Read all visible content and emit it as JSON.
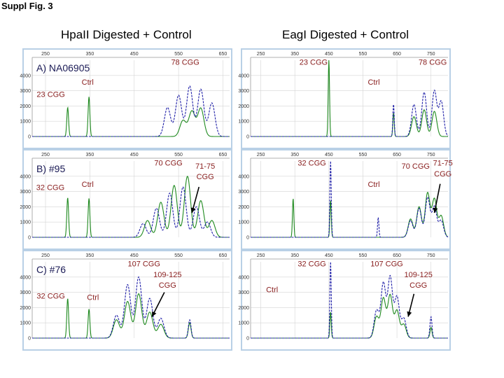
{
  "figure_label": "Suppl Fig. 3",
  "column_titles": [
    "HpaII Digested + Control",
    "EagI Digested + Control"
  ],
  "colors": {
    "digested": "#1f1fa8",
    "control": "#1f8a1f",
    "frame": "#b9d0e6",
    "grid": "#d4d4d4",
    "annotation": "#8a2020"
  },
  "chart_data": [
    {
      "type": "line",
      "column": 0,
      "row": 0,
      "panel_label": "A) NA06905",
      "xticks": [
        250,
        350,
        450,
        550,
        650
      ],
      "xlim": [
        220,
        665
      ],
      "yticks": [
        0,
        1000,
        2000,
        3000,
        4000
      ],
      "ylim": [
        0,
        5000
      ],
      "series": [
        {
          "role": "control",
          "peaks": [
            [
              300,
              1900,
              2.0
            ],
            [
              348,
              2600,
              2.0
            ]
          ],
          "cluster": [
            [
              560,
              1050,
              7
            ],
            [
              580,
              1650,
              7
            ],
            [
              600,
              1850,
              7
            ]
          ]
        },
        {
          "role": "digested",
          "peaks": [],
          "cluster": [
            [
              525,
              1900,
              7
            ],
            [
              550,
              2700,
              7
            ],
            [
              575,
              3300,
              7
            ],
            [
              600,
              3100,
              7
            ],
            [
              625,
              2200,
              7
            ]
          ]
        }
      ],
      "annotations": [
        {
          "text": "78 CGG",
          "x": 565,
          "y": 4700
        },
        {
          "text": "Ctrl",
          "x": 345,
          "y": 3400
        },
        {
          "text": "23 CGG",
          "x": 262,
          "y": 2600
        }
      ],
      "arrows": []
    },
    {
      "type": "line",
      "column": 1,
      "row": 0,
      "panel_label": "",
      "xticks": [
        250,
        350,
        450,
        550,
        650,
        750
      ],
      "xlim": [
        220,
        800
      ],
      "yticks": [
        0,
        1000,
        2000,
        3000,
        4000
      ],
      "ylim": [
        0,
        5000
      ],
      "series": [
        {
          "role": "control",
          "peaks": [
            [
              450,
              5000,
              2.0
            ],
            [
              640,
              1550,
              2.0
            ]
          ],
          "cluster": [
            [
              700,
              1300,
              7
            ],
            [
              730,
              1750,
              7
            ],
            [
              760,
              1650,
              7
            ]
          ]
        },
        {
          "role": "digested",
          "peaks": [
            [
              640,
              2150,
              2.0
            ]
          ],
          "cluster": [
            [
              700,
              2100,
              7
            ],
            [
              730,
              2900,
              7
            ],
            [
              760,
              3000,
              7
            ],
            [
              780,
              2300,
              7
            ]
          ]
        }
      ],
      "annotations": [
        {
          "text": "23 CGG",
          "x": 405,
          "y": 4700
        },
        {
          "text": "78 CGG",
          "x": 755,
          "y": 4700
        },
        {
          "text": "Ctrl",
          "x": 582,
          "y": 3400
        }
      ],
      "arrows": []
    },
    {
      "type": "line",
      "column": 0,
      "row": 1,
      "panel_label": "B) #95",
      "xticks": [
        250,
        350,
        450,
        550,
        650
      ],
      "xlim": [
        220,
        665
      ],
      "yticks": [
        0,
        1000,
        2000,
        3000,
        4000
      ],
      "ylim": [
        0,
        5000
      ],
      "series": [
        {
          "role": "control",
          "peaks": [
            [
              300,
              2600,
              2.0
            ],
            [
              348,
              2550,
              2.0
            ]
          ],
          "cluster": [
            [
              480,
              1100,
              7
            ],
            [
              510,
              2300,
              7
            ],
            [
              540,
              3400,
              7
            ],
            [
              570,
              4000,
              7
            ],
            [
              600,
              2400,
              7
            ],
            [
              625,
              1100,
              7
            ]
          ]
        },
        {
          "role": "digested",
          "peaks": [],
          "cluster": [
            [
              470,
              900,
              7
            ],
            [
              500,
              1900,
              7
            ],
            [
              530,
              2900,
              7
            ],
            [
              560,
              3300,
              7
            ],
            [
              590,
              2000,
              7
            ],
            [
              615,
              1000,
              7
            ]
          ]
        }
      ],
      "annotations": [
        {
          "text": "70 CGG",
          "x": 527,
          "y": 4700
        },
        {
          "text": "71-75",
          "x": 610,
          "y": 4500
        },
        {
          "text": "CGG",
          "x": 610,
          "y": 3800
        },
        {
          "text": "32 CGG",
          "x": 261,
          "y": 3100
        },
        {
          "text": "Ctrl",
          "x": 345,
          "y": 3300
        }
      ],
      "arrows": [
        {
          "from": [
            596,
            3300
          ],
          "to": [
            580,
            1600
          ]
        }
      ]
    },
    {
      "type": "line",
      "column": 1,
      "row": 1,
      "panel_label": "",
      "xticks": [
        250,
        350,
        450,
        550,
        650,
        750
      ],
      "xlim": [
        220,
        800
      ],
      "yticks": [
        0,
        1000,
        2000,
        3000,
        4000
      ],
      "ylim": [
        0,
        5000
      ],
      "series": [
        {
          "role": "control",
          "peaks": [
            [
              345,
              2550,
              2.0
            ],
            [
              455,
              2400,
              2.0
            ]
          ],
          "cluster": [
            [
              690,
              1200,
              7
            ],
            [
              715,
              2000,
              7
            ],
            [
              740,
              2900,
              7
            ],
            [
              760,
              2500,
              7
            ],
            [
              780,
              1400,
              7
            ]
          ]
        },
        {
          "role": "digested",
          "peaks": [
            [
              455,
              5000,
              2.0
            ],
            [
              595,
              1300,
              2.0
            ]
          ],
          "cluster": [
            [
              690,
              1100,
              7
            ],
            [
              715,
              1900,
              7
            ],
            [
              740,
              2600,
              7
            ],
            [
              760,
              2000,
              7
            ],
            [
              780,
              1100,
              7
            ]
          ]
        }
      ],
      "annotations": [
        {
          "text": "32 CGG",
          "x": 400,
          "y": 4700
        },
        {
          "text": "70 CGG",
          "x": 705,
          "y": 4500
        },
        {
          "text": "71-75",
          "x": 785,
          "y": 4700
        },
        {
          "text": "CGG",
          "x": 785,
          "y": 4000
        },
        {
          "text": "Ctrl",
          "x": 582,
          "y": 3300
        }
      ],
      "arrows": [
        {
          "from": [
            777,
            3500
          ],
          "to": [
            760,
            1600
          ]
        }
      ]
    },
    {
      "type": "line",
      "column": 0,
      "row": 2,
      "panel_label": "C) #76",
      "xticks": [
        250,
        350,
        450,
        550,
        650
      ],
      "xlim": [
        220,
        665
      ],
      "yticks": [
        0,
        1000,
        2000,
        3000,
        4000
      ],
      "ylim": [
        0,
        5000
      ],
      "series": [
        {
          "role": "control",
          "peaks": [
            [
              300,
              2600,
              2.0
            ],
            [
              348,
              1900,
              2.0
            ],
            [
              575,
              1000,
              3.0
            ]
          ],
          "cluster": [
            [
              410,
              1200,
              7
            ],
            [
              435,
              2400,
              7
            ],
            [
              460,
              2900,
              7
            ],
            [
              485,
              1700,
              7
            ],
            [
              510,
              900,
              7
            ]
          ]
        },
        {
          "role": "digested",
          "peaks": [
            [
              575,
              1200,
              3.0
            ]
          ],
          "cluster": [
            [
              410,
              1500,
              7
            ],
            [
              435,
              3500,
              7
            ],
            [
              460,
              4000,
              7
            ],
            [
              485,
              2600,
              7
            ],
            [
              510,
              1300,
              7
            ]
          ]
        }
      ],
      "annotations": [
        {
          "text": "107 CGG",
          "x": 472,
          "y": 4700
        },
        {
          "text": "109-125",
          "x": 525,
          "y": 4000
        },
        {
          "text": "CGG",
          "x": 525,
          "y": 3300
        },
        {
          "text": "32 CGG",
          "x": 262,
          "y": 2600
        },
        {
          "text": "Ctrl",
          "x": 357,
          "y": 2500
        }
      ],
      "arrows": [
        {
          "from": [
            518,
            3000
          ],
          "to": [
            490,
            1400
          ]
        }
      ]
    },
    {
      "type": "line",
      "column": 1,
      "row": 2,
      "panel_label": "",
      "xticks": [
        250,
        350,
        450,
        550,
        650,
        750
      ],
      "xlim": [
        220,
        800
      ],
      "yticks": [
        0,
        1000,
        2000,
        3000,
        4000
      ],
      "ylim": [
        0,
        5000
      ],
      "series": [
        {
          "role": "control",
          "peaks": [
            [
              455,
              1700,
              2.0
            ],
            [
              750,
              700,
              3.0
            ]
          ],
          "cluster": [
            [
              590,
              1400,
              7
            ],
            [
              610,
              2600,
              7
            ],
            [
              630,
              2800,
              7
            ],
            [
              650,
              1800,
              7
            ],
            [
              670,
              900,
              7
            ]
          ]
        },
        {
          "role": "digested",
          "peaks": [
            [
              455,
              5000,
              2.0
            ],
            [
              750,
              1400,
              3.0
            ]
          ],
          "cluster": [
            [
              590,
              1800,
              7
            ],
            [
              610,
              3600,
              7
            ],
            [
              630,
              4000,
              7
            ],
            [
              650,
              2700,
              7
            ],
            [
              670,
              1300,
              7
            ]
          ]
        }
      ],
      "annotations": [
        {
          "text": "32 CGG",
          "x": 400,
          "y": 4700
        },
        {
          "text": "107 CGG",
          "x": 620,
          "y": 4700
        },
        {
          "text": "109-125",
          "x": 713,
          "y": 4000
        },
        {
          "text": "CGG",
          "x": 713,
          "y": 3300
        },
        {
          "text": "Ctrl",
          "x": 283,
          "y": 3000
        }
      ],
      "arrows": [
        {
          "from": [
            700,
            2900
          ],
          "to": [
            683,
            1400
          ]
        }
      ]
    }
  ]
}
